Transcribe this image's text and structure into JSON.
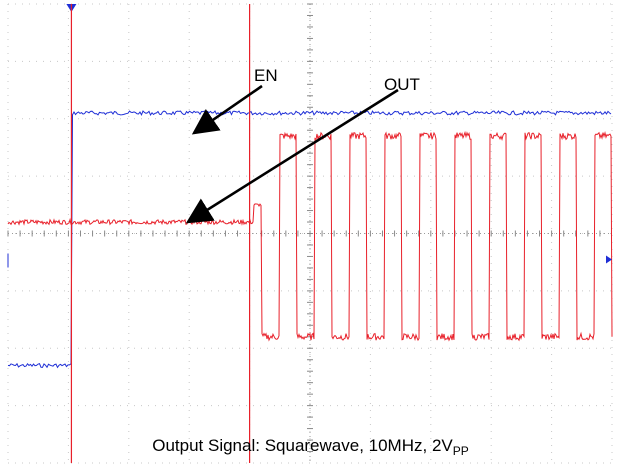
{
  "chart_data": {
    "type": "line",
    "title": "",
    "caption_main": "Output Signal: Squarewave, 10MHz, 2V",
    "caption_sub": "PP",
    "grid": true,
    "grid_divisions": {
      "x": 10,
      "y": 8
    },
    "series": [
      {
        "name": "EN",
        "color": "#1f2fd6",
        "levels": {
          "low": -2.3,
          "high": 2.1
        },
        "step_at_div": 1.05
      },
      {
        "name": "OUT",
        "color": "#e8202a",
        "levels": {
          "idle": 0.2,
          "sq_low": -1.8,
          "sq_high": 1.7
        },
        "squarewave_cycles": 10,
        "start_div": 4.2
      }
    ],
    "cursors_div": [
      1.05,
      4.0
    ]
  },
  "labels": {
    "en": "EN",
    "out": "OUT"
  }
}
